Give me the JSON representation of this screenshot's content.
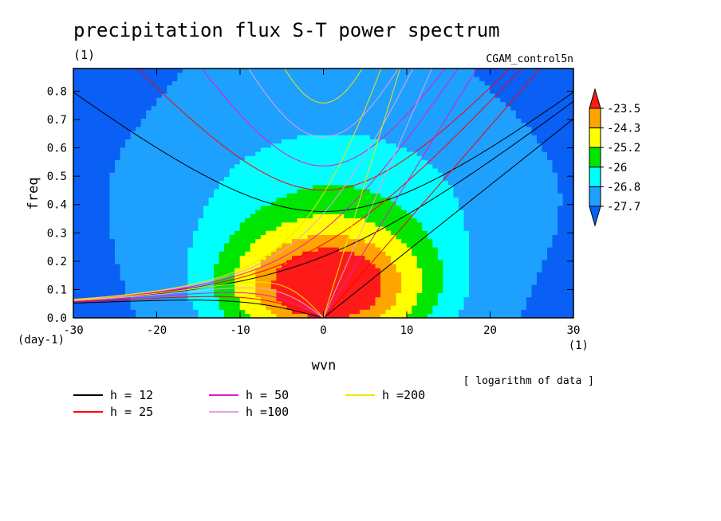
{
  "chart_data": {
    "type": "heatmap",
    "title": "precipitation flux S-T power spectrum",
    "subtitle_left": "(1)",
    "subtitle_right": "CGAM_control5n",
    "xlabel": "wvn",
    "ylabel": "freq",
    "x_unit": "(1)",
    "y_unit": "(day-1)",
    "note": "[ logarithm of data ]",
    "xlim": [
      -30,
      30
    ],
    "ylim": [
      0,
      0.88
    ],
    "x_ticks": [
      -30,
      -20,
      -10,
      0,
      10,
      20,
      30
    ],
    "x_tick_labels": [
      "-30",
      "-20",
      "-10",
      "0",
      "10",
      "20",
      "30"
    ],
    "y_ticks": [
      0,
      0.1,
      0.2,
      0.3,
      0.4,
      0.5,
      0.6,
      0.7,
      0.8
    ],
    "y_tick_labels": [
      "0.0",
      "0.1",
      "0.2",
      "0.3",
      "0.4",
      "0.5",
      "0.6",
      "0.7",
      "0.8"
    ],
    "colorbar": {
      "levels": [
        -27.7,
        -26.8,
        -26,
        -25.2,
        -24.3,
        -23.5
      ],
      "labels": [
        "-27.7",
        "-26.8",
        "-26",
        "-25.2",
        "-24.3",
        "-23.5"
      ],
      "colors": [
        "#0a5ff5",
        "#1ea0ff",
        "#00ffff",
        "#00e600",
        "#ffff00",
        "#ffa500",
        "#ff1a1a"
      ]
    },
    "dispersion_curves": [
      {
        "label": "h = 12",
        "h": 12,
        "color": "#000000"
      },
      {
        "label": "h = 25",
        "h": 25,
        "color": "#ff0000"
      },
      {
        "label": "h = 50",
        "h": 50,
        "color": "#e619c8"
      },
      {
        "label": "h =100",
        "h": 100,
        "color": "#e6a0e6"
      },
      {
        "label": "h =200",
        "h": 200,
        "color": "#f0e600"
      }
    ]
  }
}
